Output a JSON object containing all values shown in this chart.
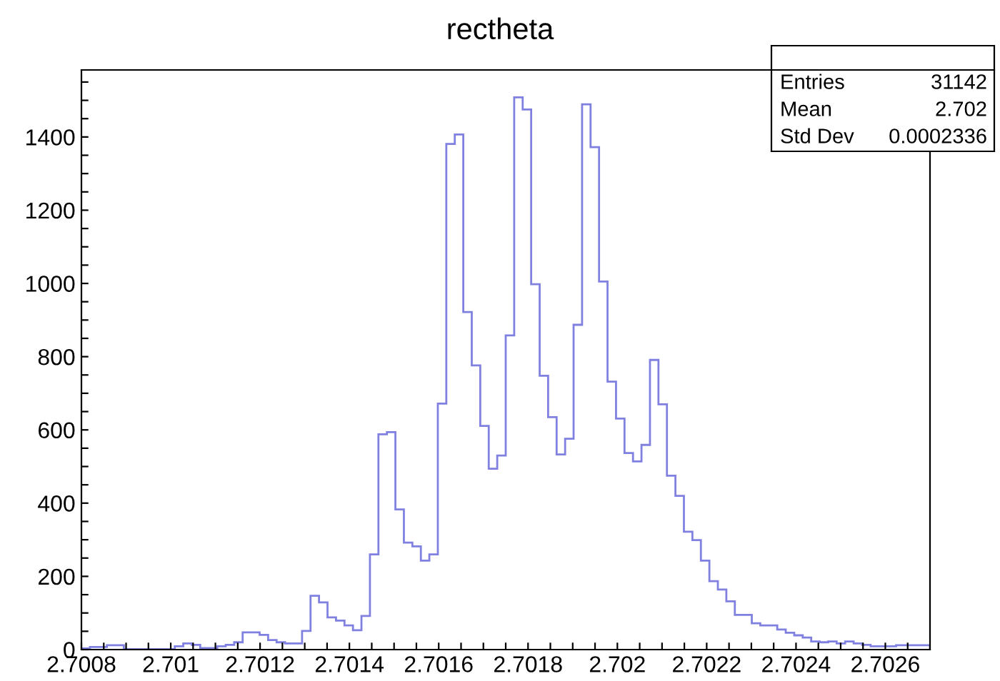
{
  "chart_data": {
    "type": "histogram",
    "title": "rectheta",
    "bins": [
      2.7008,
      2.700819,
      2.700838,
      2.700857,
      2.700876,
      2.700895,
      2.700914,
      2.700933,
      2.700952,
      2.700971,
      2.70099,
      2.701009,
      2.701028,
      2.701047,
      2.701066,
      2.701085,
      2.701104,
      2.701123,
      2.701142,
      2.701161,
      2.70118,
      2.701199,
      2.701218,
      2.701237,
      2.701256,
      2.701275,
      2.701294,
      2.701313,
      2.701332,
      2.701351,
      2.70137,
      2.701389,
      2.701408,
      2.701427,
      2.701446,
      2.701465,
      2.701484,
      2.701503,
      2.701522,
      2.701541,
      2.70156,
      2.701579,
      2.701598,
      2.701617,
      2.701636,
      2.701655,
      2.701674,
      2.701693,
      2.701712,
      2.701731,
      2.70175,
      2.701769,
      2.701788,
      2.701807,
      2.701826,
      2.701845,
      2.701864,
      2.701883,
      2.701902,
      2.701921,
      2.70194,
      2.701959,
      2.701978,
      2.701997,
      2.702016,
      2.702035,
      2.702054,
      2.702073,
      2.702092,
      2.702111,
      2.70213,
      2.702149,
      2.702168,
      2.702187,
      2.702206,
      2.702225,
      2.702244,
      2.702263,
      2.702282,
      2.702301,
      2.70232,
      2.702339,
      2.702358,
      2.702377,
      2.702396,
      2.702415,
      2.702434,
      2.702453,
      2.702472,
      2.702491,
      2.70251,
      2.702529,
      2.702548,
      2.702567,
      2.702586,
      2.702605,
      2.702624,
      2.702643,
      2.702662,
      2.702681,
      2.7027
    ],
    "values": [
      3,
      7,
      7,
      12,
      12,
      1,
      1,
      1,
      1,
      1,
      1,
      9,
      17,
      13,
      4,
      4,
      9,
      13,
      20,
      47,
      47,
      40,
      26,
      20,
      17,
      17,
      51,
      147,
      129,
      88,
      79,
      66,
      53,
      92,
      260,
      588,
      594,
      383,
      292,
      282,
      243,
      260,
      672,
      1381,
      1407,
      922,
      776,
      611,
      494,
      530,
      858,
      1508,
      1475,
      998,
      748,
      635,
      533,
      576,
      887,
      1489,
      1372,
      1005,
      732,
      631,
      537,
      514,
      559,
      791,
      670,
      475,
      420,
      322,
      299,
      243,
      187,
      164,
      132,
      95,
      95,
      72,
      66,
      66,
      55,
      46,
      39,
      33,
      22,
      20,
      22,
      17,
      22,
      17,
      13,
      9,
      9,
      9,
      12,
      12,
      12,
      12
    ],
    "color": "#8080e0",
    "xlim": [
      2.7008,
      2.7027
    ],
    "xticks": [
      2.7008,
      {
        "value": 2.70085,
        "label": null
      },
      {
        "value": 2.7009,
        "label": null
      },
      {
        "value": 2.70095,
        "label": null
      },
      2.701,
      {
        "value": 2.70105,
        "label": null
      },
      {
        "value": 2.7011,
        "label": null
      },
      {
        "value": 2.70115,
        "label": null
      },
      2.7012,
      {
        "value": 2.70125,
        "label": null
      },
      {
        "value": 2.7013,
        "label": null
      },
      {
        "value": 2.70135,
        "label": null
      },
      2.7014,
      {
        "value": 2.70145,
        "label": null
      },
      {
        "value": 2.7015,
        "label": null
      },
      {
        "value": 2.70155,
        "label": null
      },
      2.7016,
      {
        "value": 2.70165,
        "label": null
      },
      {
        "value": 2.7017,
        "label": null
      },
      {
        "value": 2.70175,
        "label": null
      },
      2.7018,
      {
        "value": 2.70185,
        "label": null
      },
      {
        "value": 2.7019,
        "label": null
      },
      {
        "value": 2.70195,
        "label": null
      },
      2.702,
      {
        "value": 2.70205,
        "label": null
      },
      {
        "value": 2.7021,
        "label": null
      },
      {
        "value": 2.70215,
        "label": null
      },
      2.7022,
      {
        "value": 2.70225,
        "label": null
      },
      {
        "value": 2.7023,
        "label": null
      },
      {
        "value": 2.70235,
        "label": null
      },
      2.7024,
      {
        "value": 2.70245,
        "label": null
      },
      {
        "value": 2.7025,
        "label": null
      },
      {
        "value": 2.70255,
        "label": null
      },
      2.7026,
      {
        "value": 2.70265,
        "label": null
      }
    ],
    "ylim": [
      0,
      1583
    ],
    "yticks": [
      0,
      {
        "value": 50,
        "label": null
      },
      {
        "value": 100,
        "label": null
      },
      {
        "value": 150,
        "label": null
      },
      200,
      {
        "value": 250,
        "label": null
      },
      {
        "value": 300,
        "label": null
      },
      {
        "value": 350,
        "label": null
      },
      400,
      {
        "value": 450,
        "label": null
      },
      {
        "value": 500,
        "label": null
      },
      {
        "value": 550,
        "label": null
      },
      600,
      {
        "value": 650,
        "label": null
      },
      {
        "value": 700,
        "label": null
      },
      {
        "value": 750,
        "label": null
      },
      800,
      {
        "value": 850,
        "label": null
      },
      {
        "value": 900,
        "label": null
      },
      {
        "value": 950,
        "label": null
      },
      1000,
      {
        "value": 1050,
        "label": null
      },
      {
        "value": 1100,
        "label": null
      },
      {
        "value": 1150,
        "label": null
      },
      1200,
      {
        "value": 1250,
        "label": null
      },
      {
        "value": 1300,
        "label": null
      },
      {
        "value": 1350,
        "label": null
      },
      1400,
      {
        "value": 1450,
        "label": null
      },
      {
        "value": 1500,
        "label": null
      },
      {
        "value": 1550,
        "label": null
      }
    ],
    "annotations": [
      "Entries",
      "31142",
      "Mean",
      "2.702",
      "Std Dev",
      "0.0002336"
    ]
  }
}
